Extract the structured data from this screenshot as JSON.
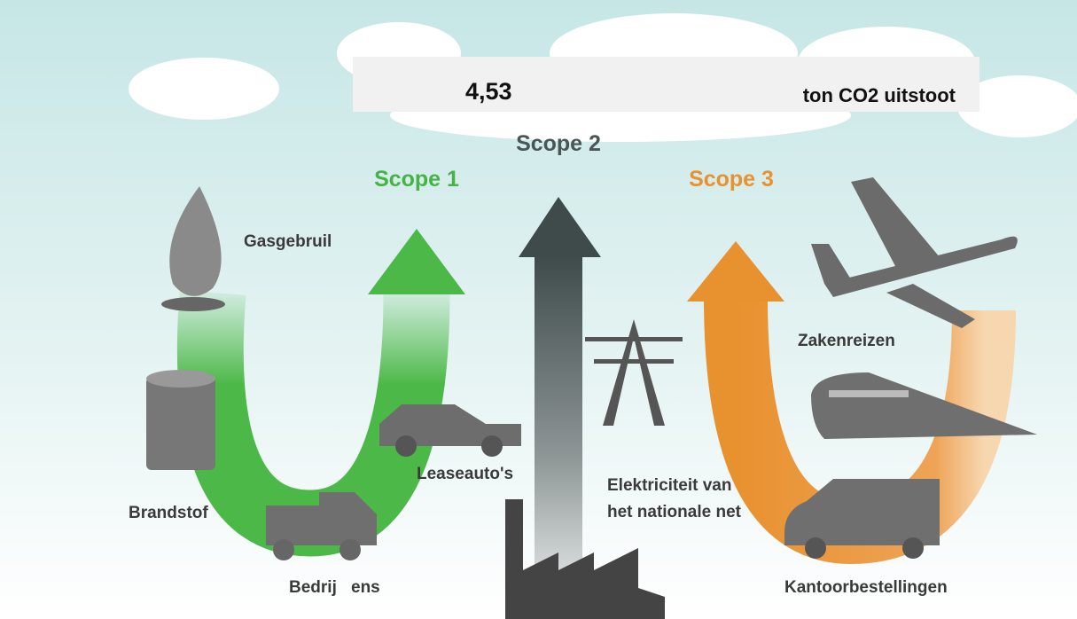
{
  "header": {
    "value": "4,53",
    "unit": "ton CO2 uitstoot"
  },
  "scopes": [
    {
      "label": "Scope 1"
    },
    {
      "label": "Scope 2"
    },
    {
      "label": "Scope 3"
    }
  ],
  "labels": {
    "gas": "Gasgebruil",
    "fuel": "Brandstof",
    "company_vehicles_start": "Bedrij",
    "company_vehicles_end": "ens",
    "lease": "Leaseauto's",
    "electricity_1": "Elektriciteit van",
    "electricity_2": "het nationale net",
    "travel": "Zakenreizen",
    "orders": "Kantoorbestellingen"
  }
}
